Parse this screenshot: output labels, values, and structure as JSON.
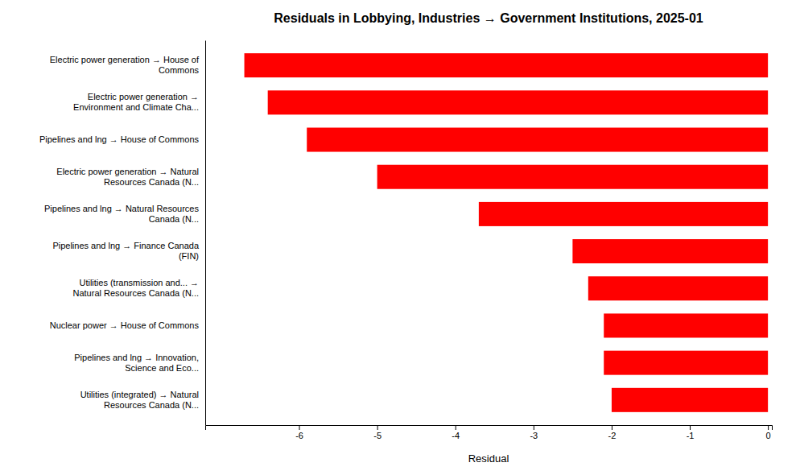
{
  "chart_data": {
    "type": "bar",
    "orientation": "horizontal",
    "title": "Residuals in Lobbying, Industries → Government Institutions, 2025-01",
    "xlabel": "Residual",
    "categories": [
      "Utilities (integrated) → Natural\nResources Canada (N...",
      "Pipelines and lng → Innovation,\nScience and Eco...",
      "Nuclear power → House of Commons",
      "Utilities (transmission and... →\nNatural Resources Canada (N...",
      "Pipelines and lng → Finance Canada\n(FIN)",
      "Pipelines and lng → Natural Resources\nCanada (N...",
      "Electric power generation → Natural\nResources Canada (N...",
      "Pipelines and lng → House of Commons",
      "Electric power generation →\nEnvironment and Climate Cha...",
      "Electric power generation → House of\nCommons"
    ],
    "values": [
      -2.0,
      -2.1,
      -2.1,
      -2.3,
      -2.5,
      -3.7,
      -5.0,
      -5.9,
      -6.4,
      -6.7
    ],
    "color": "#ff0000",
    "xlim": [
      -7.2,
      0.05
    ],
    "xticks": [
      -6,
      -5,
      -4,
      -3,
      -2,
      -1,
      0
    ],
    "grid": false
  }
}
